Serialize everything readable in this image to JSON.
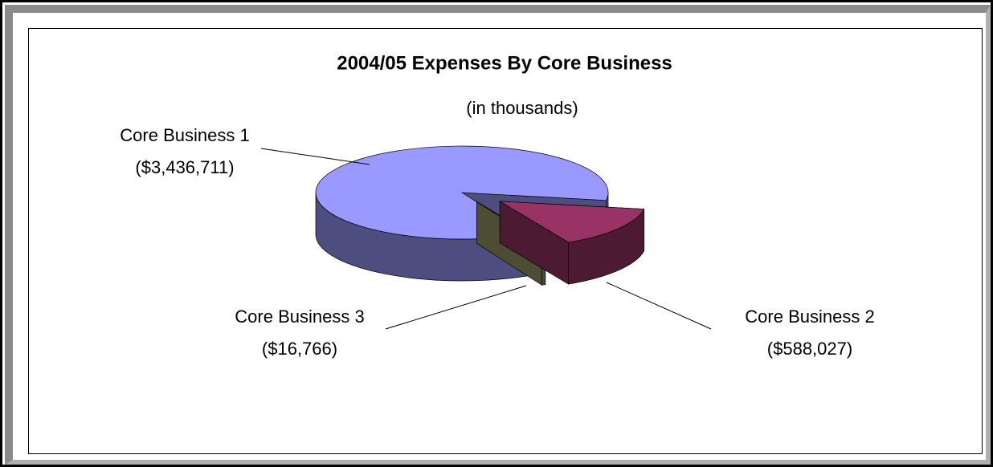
{
  "chart_data": {
    "type": "pie",
    "title": "2004/05 Expenses By Core Business",
    "subtitle": "(in thousands)",
    "categories": [
      "Core Business 1",
      "Core Business 2",
      "Core Business 3"
    ],
    "values": [
      3436711,
      588027,
      16766
    ],
    "value_labels": [
      "($3,436,711)",
      "($588,027)",
      "($16,766)"
    ],
    "colors": [
      "#9999ff",
      "#993366",
      "#999966"
    ]
  }
}
